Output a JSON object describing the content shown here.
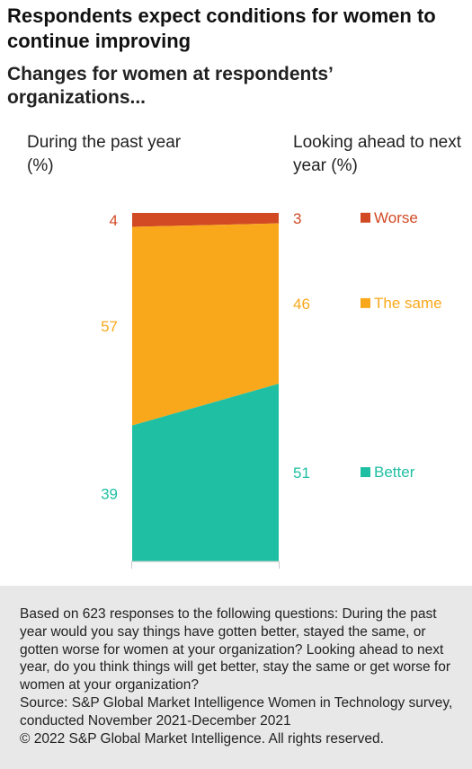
{
  "header": {
    "title": "Respondents expect conditions for women to continue improving",
    "subtitle": "Changes for women at respondents’ organizations..."
  },
  "columns": {
    "left": "During the past year (%)",
    "right": "Looking ahead to next year (%)"
  },
  "chart_data": {
    "type": "area",
    "categories": [
      "During the past year (%)",
      "Looking ahead to next year (%)"
    ],
    "series": [
      {
        "name": "Worse",
        "values": [
          4,
          3
        ],
        "color": "#d14a24"
      },
      {
        "name": "The same",
        "values": [
          57,
          46
        ],
        "color": "#f9a81c"
      },
      {
        "name": "Better",
        "values": [
          39,
          51
        ],
        "color": "#1fbfa3"
      }
    ],
    "stacked": true,
    "ylim": [
      0,
      100
    ],
    "legend": "right",
    "grid": false
  },
  "footer": {
    "note": "Based on 623 responses to the following questions: During the past year would you say things have gotten better, stayed the same, or gotten worse for women at your organization? Looking ahead to next year, do you think things will get better, stay the same or get worse for women at your organization?",
    "source": "Source: S&P Global Market Intelligence Women in Technology survey, conducted November 2021-December 2021",
    "copyright": "© 2022 S&P Global Market Intelligence. All rights reserved."
  }
}
